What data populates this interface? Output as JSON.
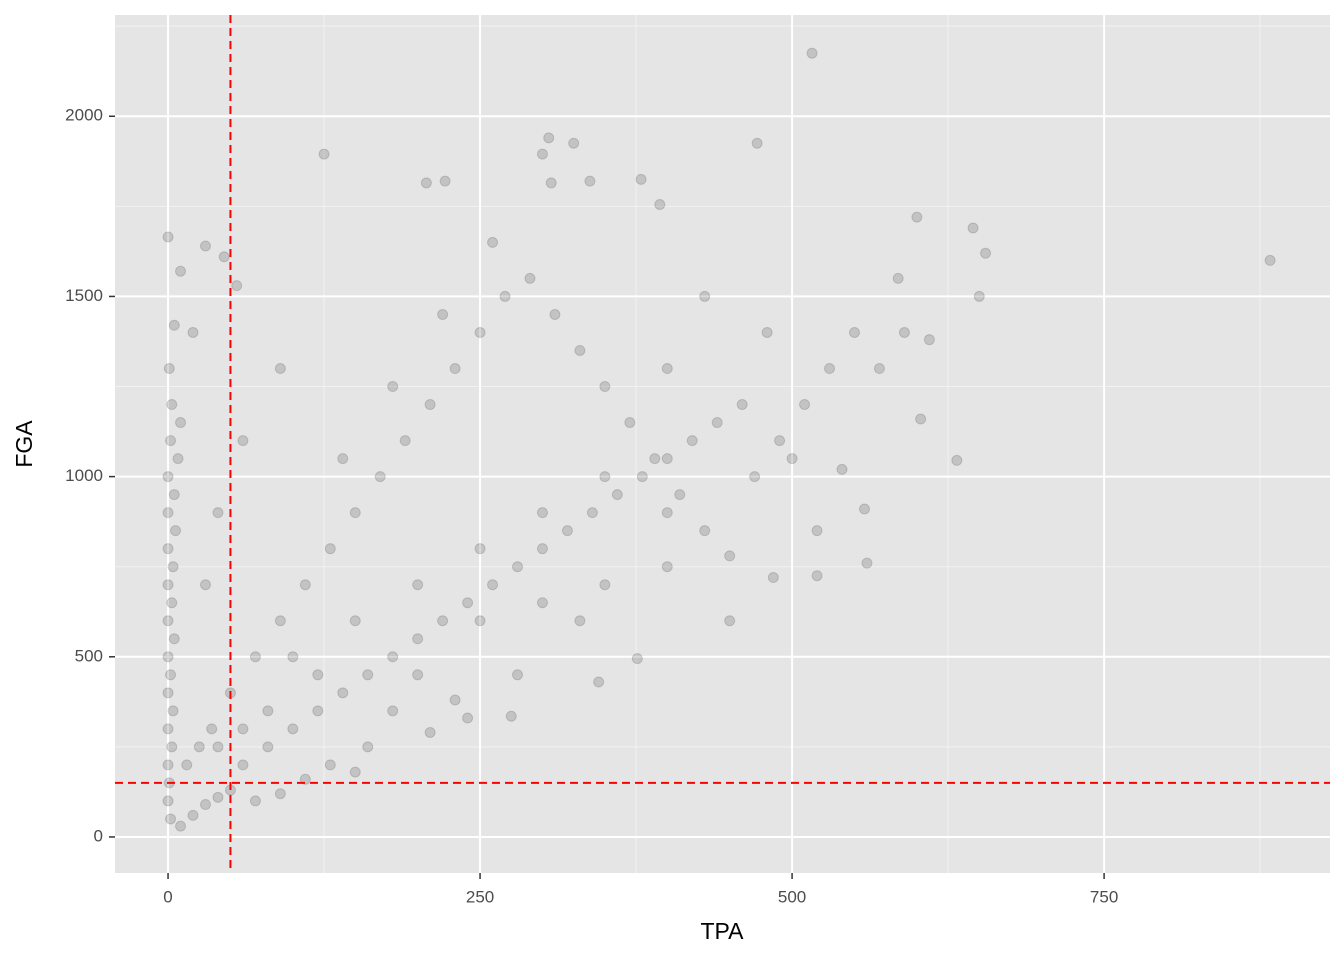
{
  "chart_data": {
    "type": "scatter",
    "x_label": "TPA",
    "y_label": "FGA",
    "xlim": [
      -42.5,
      931
    ],
    "ylim": [
      -100,
      2281
    ],
    "xticks": [
      0,
      250,
      500,
      750
    ],
    "yticks": [
      0,
      500,
      1000,
      1500,
      2000
    ],
    "xminor": [
      125,
      375,
      625,
      875
    ],
    "yminor": [
      250,
      750,
      1250,
      1750,
      2250
    ],
    "grid": true,
    "reference_lines": {
      "x": 50,
      "y": 150,
      "color": "#ff0000"
    },
    "series": [
      {
        "color": "#000000",
        "x": [
          0,
          5,
          10,
          30,
          45,
          55,
          125,
          207,
          222,
          300,
          305,
          325,
          307,
          338,
          379,
          394,
          472,
          516,
          600,
          645,
          655,
          883,
          585,
          650,
          603,
          632,
          558,
          560,
          520,
          485,
          450,
          376,
          345,
          275,
          240,
          210,
          150,
          110,
          90,
          70,
          0,
          0,
          0,
          0,
          0,
          0,
          0,
          0,
          0,
          0,
          2,
          3,
          1,
          2,
          1,
          3,
          4,
          2,
          5,
          3,
          4,
          6,
          5,
          8,
          10,
          10,
          20,
          30,
          40,
          50,
          15,
          25,
          35,
          60,
          80,
          100,
          120,
          140,
          160,
          180,
          200,
          220,
          240,
          260,
          280,
          300,
          320,
          340,
          360,
          380,
          400,
          420,
          440,
          460,
          50,
          70,
          90,
          110,
          130,
          150,
          170,
          190,
          210,
          230,
          250,
          270,
          290,
          310,
          330,
          350,
          370,
          390,
          410,
          430,
          450,
          470,
          490,
          510,
          530,
          550,
          570,
          590,
          610,
          150,
          200,
          250,
          300,
          350,
          400,
          250,
          300,
          350,
          400,
          200,
          180,
          120,
          100,
          80,
          60,
          40,
          30,
          40,
          60,
          90,
          20,
          140,
          180,
          220,
          260,
          400,
          430,
          480,
          500,
          520,
          540,
          330,
          280,
          230,
          160,
          130
        ],
        "values": [
          1665,
          1420,
          1570,
          1640,
          1610,
          1530,
          1895,
          1815,
          1820,
          1895,
          1940,
          1925,
          1815,
          1820,
          1825,
          1755,
          1925,
          2175,
          1720,
          1690,
          1620,
          1600,
          1550,
          1500,
          1160,
          1045,
          910,
          760,
          725,
          720,
          600,
          495,
          430,
          335,
          330,
          290,
          180,
          160,
          120,
          100,
          100,
          200,
          300,
          400,
          500,
          600,
          700,
          800,
          900,
          1000,
          1100,
          1200,
          1300,
          50,
          150,
          250,
          350,
          450,
          550,
          650,
          750,
          850,
          950,
          1050,
          1150,
          30,
          60,
          90,
          110,
          130,
          200,
          250,
          300,
          200,
          250,
          300,
          350,
          400,
          450,
          500,
          550,
          600,
          650,
          700,
          750,
          800,
          850,
          900,
          950,
          1000,
          1050,
          1100,
          1150,
          1200,
          400,
          500,
          600,
          700,
          800,
          900,
          1000,
          1100,
          1200,
          1300,
          1400,
          1500,
          1550,
          1450,
          1350,
          1250,
          1150,
          1050,
          950,
          850,
          780,
          1000,
          1100,
          1200,
          1300,
          1400,
          1300,
          1400,
          1380,
          600,
          700,
          800,
          900,
          1000,
          900,
          600,
          650,
          700,
          750,
          450,
          350,
          450,
          500,
          350,
          300,
          250,
          700,
          900,
          1100,
          1300,
          1400,
          1050,
          1250,
          1450,
          1650,
          1300,
          1500,
          1400,
          1050,
          850,
          1020,
          600,
          450,
          380,
          250,
          200
        ]
      }
    ]
  }
}
